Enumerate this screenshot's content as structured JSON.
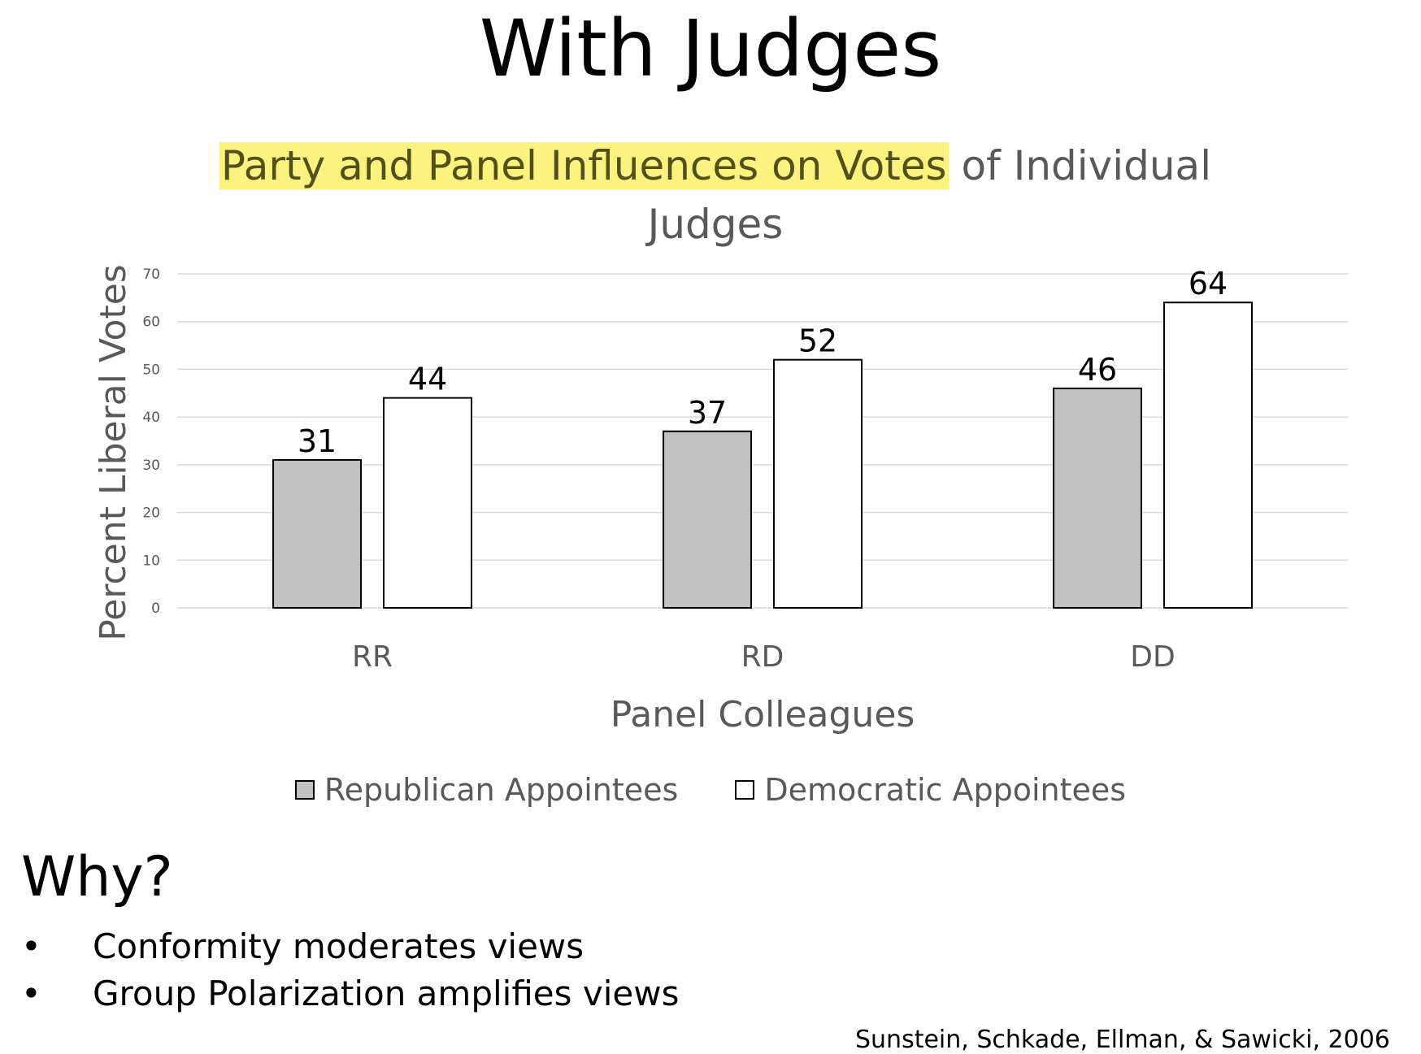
{
  "slide": {
    "title": "With Judges",
    "why_heading": "Why?",
    "bullets": [
      "Conformity moderates views",
      "Group Polarization amplifies views"
    ],
    "bullet_glyph": "•",
    "citation": "Sunstein, Schkade, Ellman, & Sawicki, 2006"
  },
  "chart_data": {
    "type": "bar",
    "title_highlighted": "Party and Panel Influences on Votes",
    "title_rest": " of Individual Judges",
    "xlabel": "Panel Colleagues",
    "ylabel": "Percent Liberal Votes",
    "categories": [
      "RR",
      "RD",
      "DD"
    ],
    "ylim": [
      0,
      70
    ],
    "yticks": [
      0,
      10,
      20,
      30,
      40,
      50,
      60,
      70
    ],
    "series": [
      {
        "name": "Republican Appointees",
        "values": [
          31,
          37,
          46
        ],
        "color": "#c0c0c0"
      },
      {
        "name": "Democratic Appointees",
        "values": [
          44,
          52,
          64
        ],
        "color": "#ffffff"
      }
    ],
    "data_labels": true,
    "grid": true,
    "legend_position": "bottom",
    "highlight_color": "#fcf27f"
  }
}
